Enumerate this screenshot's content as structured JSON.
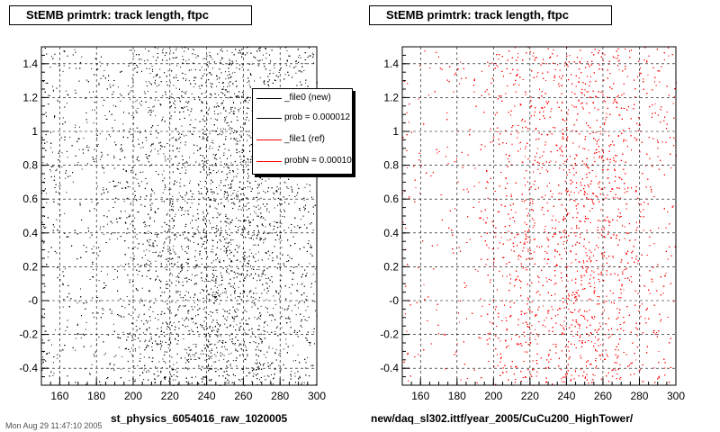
{
  "panels": [
    {
      "title": "StEMB primtrk: track length, ftpc",
      "xlabel": "st_physics_6054016_raw_1020005",
      "color": "#000000"
    },
    {
      "title": "StEMB primtrk: track length, ftpc",
      "xlabel": "new/daq_sl302.ittf/year_2005/CuCu200_HighTower/",
      "color": "#ff0000"
    }
  ],
  "legend": {
    "entries": [
      {
        "label": "_file0 (new)",
        "color": "#000000"
      },
      {
        "label": "prob = 0.000012",
        "color": "#000000"
      },
      {
        "label": "_file1 (ref)",
        "color": "#ff0000"
      },
      {
        "label": "probN = 0.00010",
        "color": "#ff0000"
      }
    ]
  },
  "stamp": "Mon Aug 29 11:47:10 2005",
  "chart_data": [
    {
      "type": "scatter",
      "title": "StEMB primtrk: track length, ftpc",
      "xlabel": "st_physics_6054016_raw_1020005",
      "ylabel": "",
      "xlim": [
        150,
        300
      ],
      "ylim": [
        -0.5,
        1.5
      ],
      "xticks": [
        160,
        180,
        200,
        220,
        240,
        260,
        280,
        300
      ],
      "yticks": [
        "-0.4",
        "-0.2",
        "-0",
        "0.2",
        "0.4",
        "0.6",
        "0.8",
        "1",
        "1.2",
        "1.4"
      ],
      "grid": true,
      "series": [
        {
          "color": "#000000",
          "density_by_x": [
            [
              150,
              0.3
            ],
            [
              160,
              0.28
            ],
            [
              170,
              0.25
            ],
            [
              180,
              0.27
            ],
            [
              190,
              0.3
            ],
            [
              200,
              0.55
            ],
            [
              210,
              0.65
            ],
            [
              220,
              0.7
            ],
            [
              230,
              0.75
            ],
            [
              240,
              1.0
            ],
            [
              250,
              1.0
            ],
            [
              260,
              0.95
            ],
            [
              270,
              0.8
            ],
            [
              280,
              0.55
            ],
            [
              290,
              0.45
            ],
            [
              300,
              0.4
            ]
          ]
        }
      ]
    },
    {
      "type": "scatter",
      "title": "StEMB primtrk: track length, ftpc",
      "xlabel": "new/daq_sl302.ittf/year_2005/CuCu200_HighTower/",
      "ylabel": "",
      "xlim": [
        150,
        300
      ],
      "ylim": [
        -0.5,
        1.5
      ],
      "xticks": [
        160,
        180,
        200,
        220,
        240,
        260,
        280,
        300
      ],
      "yticks": [
        "-0.4",
        "-0.2",
        "-0",
        "0.2",
        "0.4",
        "0.6",
        "0.8",
        "1",
        "1.2",
        "1.4"
      ],
      "grid": true,
      "series": [
        {
          "color": "#ff0000",
          "density_by_x": [
            [
              150,
              0.15
            ],
            [
              160,
              0.12
            ],
            [
              170,
              0.1
            ],
            [
              180,
              0.12
            ],
            [
              190,
              0.18
            ],
            [
              200,
              0.4
            ],
            [
              210,
              0.55
            ],
            [
              220,
              0.65
            ],
            [
              230,
              0.7
            ],
            [
              240,
              0.85
            ],
            [
              250,
              0.9
            ],
            [
              260,
              0.85
            ],
            [
              270,
              0.65
            ],
            [
              280,
              0.45
            ],
            [
              290,
              0.3
            ],
            [
              300,
              0.25
            ]
          ]
        }
      ]
    }
  ]
}
